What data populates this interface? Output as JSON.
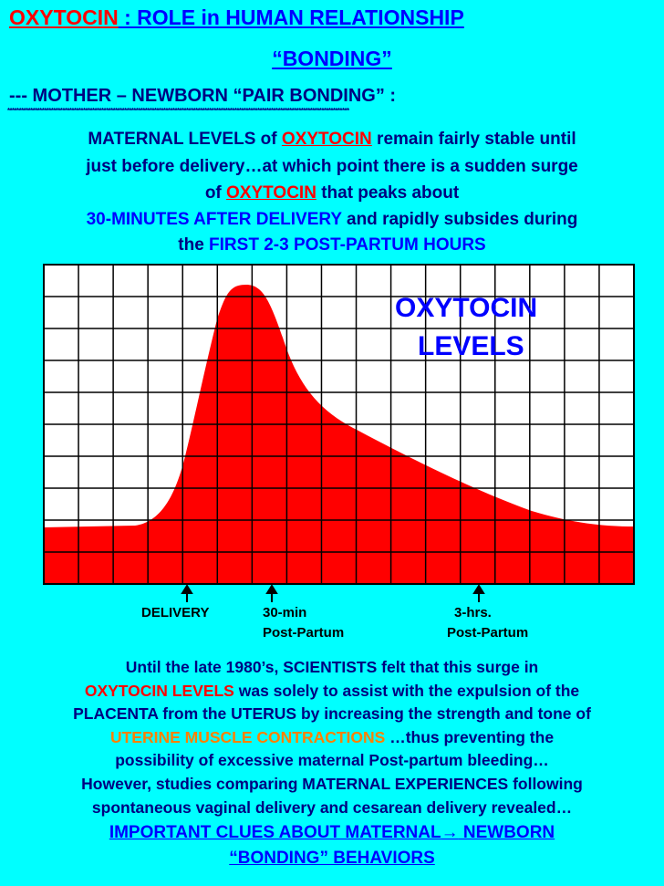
{
  "header": {
    "title": [
      {
        "text": "OXYTOCIN",
        "color": "#ff0000",
        "underline": true
      },
      {
        "text": " : ROLE in HUMAN RELATIONSHIP",
        "color": "#0000ff",
        "underline": true
      }
    ],
    "subtitle": [
      {
        "text": "“BONDING”",
        "color": "#0000ff",
        "underline": true
      }
    ],
    "section": [
      {
        "text": "--- MOTHER – NEWBORN “PAIR BONDING” :",
        "color": "#000080"
      }
    ],
    "divider": [
      {
        "text": "*****************************************************************************************************************************************************",
        "color": "#000080"
      }
    ]
  },
  "intro": {
    "lines": [
      [
        {
          "text": "MATERNAL LEVELS of ",
          "color": "#000080"
        },
        {
          "text": "OXYTOCIN",
          "color": "#ff0000",
          "underline": true
        },
        {
          "text": " remain fairly stable until",
          "color": "#000080"
        }
      ],
      [
        {
          "text": "just before delivery…at which point there is a sudden surge",
          "color": "#000080"
        }
      ],
      [
        {
          "text": "of ",
          "color": "#000080"
        },
        {
          "text": "OXYTOCIN",
          "color": "#ff0000",
          "underline": true
        },
        {
          "text": " that peaks about",
          "color": "#000080"
        }
      ],
      [
        {
          "text": "30-MINUTES AFTER DELIVERY",
          "color": "#0000ff"
        },
        {
          "text": " and rapidly subsides during",
          "color": "#000080"
        }
      ],
      [
        {
          "text": "the ",
          "color": "#000080"
        },
        {
          "text": "FIRST 2-3 POST-PARTUM HOURS",
          "color": "#0000ff"
        }
      ]
    ]
  },
  "figure": {
    "label": [
      "OXYTOCIN",
      "LEVELS"
    ],
    "markers": [
      {
        "lines": [
          "DELIVERY"
        ]
      },
      {
        "lines": [
          "30-min",
          "Post-Partum"
        ]
      },
      {
        "lines": [
          "3-hrs.",
          "Post-Partum"
        ]
      }
    ]
  },
  "body": {
    "lines": [
      [
        {
          "text": "Until the late 1980’s, SCIENTISTS felt that this surge in",
          "color": "#000080"
        }
      ],
      [
        {
          "text": "OXYTOCIN LEVELS",
          "color": "#ff0000"
        },
        {
          "text": " was solely to assist with the expulsion of the",
          "color": "#000080"
        }
      ],
      [
        {
          "text": "PLACENTA from the UTERUS by increasing the strength and tone of",
          "color": "#000080"
        }
      ],
      [
        {
          "text": "UTERINE MUSCLE CONTRACTIONS",
          "color": "#ff8000"
        },
        {
          "text": " …thus preventing the",
          "color": "#000080"
        }
      ],
      [
        {
          "text": "possibility of excessive maternal Post-partum bleeding…",
          "color": "#000080"
        }
      ],
      [
        {
          "text": "However, studies comparing MATERNAL EXPERIENCES following",
          "color": "#000080"
        }
      ],
      [
        {
          "text": "spontaneous vaginal delivery and cesarean delivery revealed…",
          "color": "#000080"
        }
      ],
      [
        {
          "text": "IMPORTANT CLUES ABOUT MATERNAL",
          "color": "#0000ff",
          "underline": true
        },
        {
          "text": "→",
          "color": "#0000ff",
          "underline": true
        },
        {
          "text": " NEWBORN",
          "color": "#0000ff",
          "underline": true
        }
      ],
      [
        {
          "text": "“BONDING” BEHAVIORS",
          "color": "#0000ff",
          "underline": true
        }
      ]
    ]
  }
}
